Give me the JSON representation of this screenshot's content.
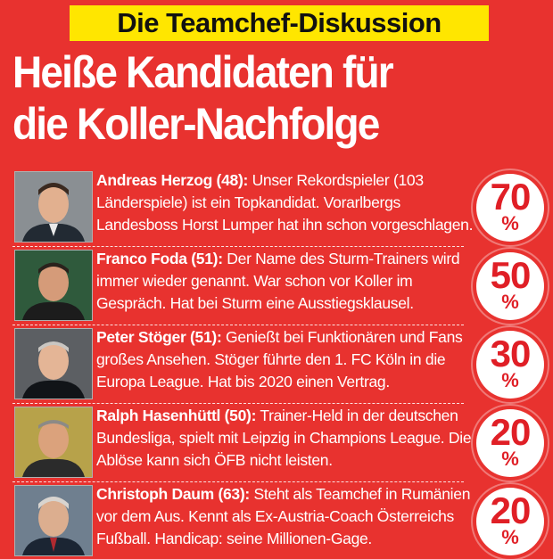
{
  "kicker": "Die Teamchef-Diskussion",
  "headline": {
    "line1": "Heiße Kandidaten für",
    "line2": "die Koller-Nachfolge"
  },
  "percent_symbol": "%",
  "candidates": [
    {
      "name": "Andreas Herzog (48):",
      "text": " Unser Rekordspieler (103 Länderspiele) ist ein Topkandidat. Vorarlbergs Landesboss Horst Lumper hat ihn schon vorgeschlagen.",
      "percent": "70"
    },
    {
      "name": "Franco Foda (51):",
      "text": " Der Name des Sturm-Trainers wird immer wieder genannt. War schon vor Koller im Gespräch. Hat bei Sturm eine Ausstiegsklausel.",
      "percent": "50"
    },
    {
      "name": "Peter Stöger (51):",
      "text": " Genießt bei Funktionären und Fans großes Ansehen. Stöger führte den 1. FC Köln in die Europa League. Hat bis 2020 einen Vertrag.",
      "percent": "30"
    },
    {
      "name": "Ralph Hasenhüttl (50):",
      "text": " Trainer-Held in der deutschen Bundesliga, spielt mit Leipzig in Champions League. Die Ablöse kann sich ÖFB nicht leisten.",
      "percent": "20"
    },
    {
      "name": "Christoph Daum (63):",
      "text": " Steht als Teamchef in Rumänien vor dem Aus. Kennt als Ex-Austria-Coach Österreichs Fußball. Handicap: seine Millionen-Gage.",
      "percent": "20"
    }
  ],
  "colors": {
    "background": "#e8322f",
    "kicker_bg": "#ffe600",
    "percent_text": "#e01f26"
  }
}
